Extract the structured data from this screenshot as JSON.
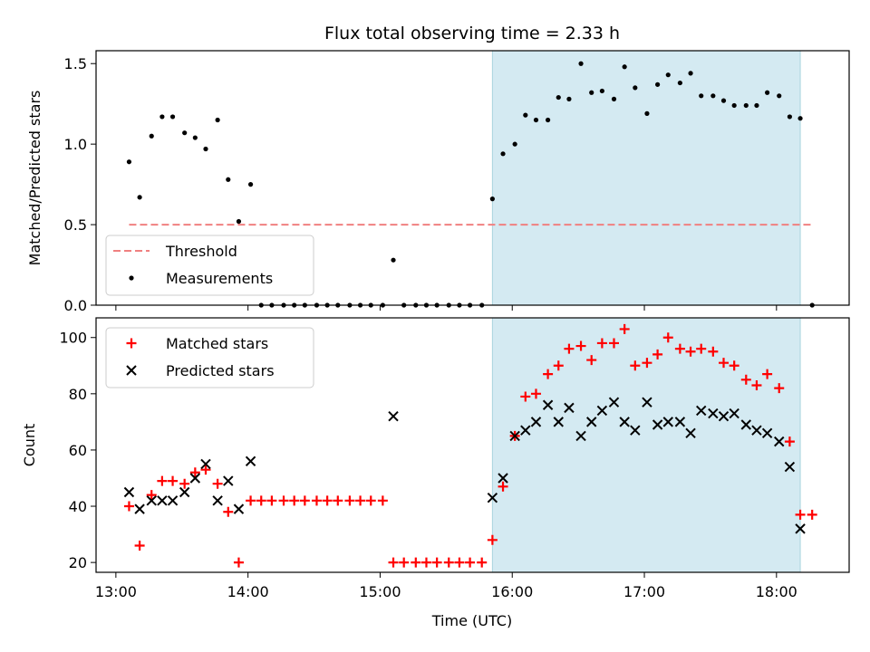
{
  "chart_data": {
    "title": "Flux total observing time = 2.33 h",
    "xlabel": "Time (UTC)",
    "xticks": [
      {
        "value": 13.0,
        "label": "13:00"
      },
      {
        "value": 14.0,
        "label": "14:00"
      },
      {
        "value": 15.0,
        "label": "15:00"
      },
      {
        "value": 16.0,
        "label": "16:00"
      },
      {
        "value": 17.0,
        "label": "17:00"
      },
      {
        "value": 18.0,
        "label": "18:00"
      }
    ],
    "xlim": [
      12.85,
      18.55
    ],
    "shaded_region": {
      "x0": 15.85,
      "x1": 18.18,
      "color": "#d4eaf2"
    },
    "colors": {
      "threshold": "#f08080",
      "measurements": "#000000",
      "matched": "#ff0000",
      "predicted": "#000000"
    },
    "panels": [
      {
        "type": "scatter",
        "ylabel": "Matched/Predicted stars",
        "ylim": [
          0,
          1.58
        ],
        "yticks": [
          {
            "value": 0.0,
            "label": "0.0"
          },
          {
            "value": 0.5,
            "label": "0.5"
          },
          {
            "value": 1.0,
            "label": "1.0"
          },
          {
            "value": 1.5,
            "label": "1.5"
          }
        ],
        "threshold": {
          "name": "Threshold",
          "value": 0.5,
          "x_range": [
            13.1,
            18.27
          ]
        },
        "legend": {
          "position": "lower-left",
          "entries": [
            "Threshold",
            "Measurements"
          ]
        },
        "series": [
          {
            "name": "Measurements",
            "marker": "dot",
            "x": [
              13.1,
              13.18,
              13.27,
              13.35,
              13.43,
              13.52,
              13.6,
              13.68,
              13.77,
              13.85,
              13.93,
              14.02,
              14.1,
              14.18,
              14.27,
              14.35,
              14.43,
              14.52,
              14.6,
              14.68,
              14.77,
              14.85,
              14.93,
              15.02,
              15.1,
              15.18,
              15.27,
              15.35,
              15.43,
              15.52,
              15.6,
              15.68,
              15.77,
              15.85,
              15.93,
              16.02,
              16.1,
              16.18,
              16.27,
              16.35,
              16.43,
              16.52,
              16.6,
              16.68,
              16.77,
              16.85,
              16.93,
              17.02,
              17.1,
              17.18,
              17.27,
              17.35,
              17.43,
              17.52,
              17.6,
              17.68,
              17.77,
              17.85,
              17.93,
              18.02,
              18.1,
              18.18,
              18.27
            ],
            "y": [
              0.89,
              0.67,
              1.05,
              1.17,
              1.17,
              1.07,
              1.04,
              0.97,
              1.15,
              0.78,
              0.52,
              0.75,
              0.0,
              0.0,
              0.0,
              0.0,
              0.0,
              0.0,
              0.0,
              0.0,
              0.0,
              0.0,
              0.0,
              0.0,
              0.28,
              0.0,
              0.0,
              0.0,
              0.0,
              0.0,
              0.0,
              0.0,
              0.0,
              0.66,
              0.94,
              1.0,
              1.18,
              1.15,
              1.15,
              1.29,
              1.28,
              1.5,
              1.32,
              1.33,
              1.28,
              1.48,
              1.35,
              1.19,
              1.37,
              1.43,
              1.38,
              1.44,
              1.3,
              1.3,
              1.27,
              1.24,
              1.24,
              1.24,
              1.32,
              1.3,
              1.17,
              1.16,
              0.0
            ]
          }
        ]
      },
      {
        "type": "scatter",
        "ylabel": "Count",
        "ylim": [
          16.5,
          107
        ],
        "yticks": [
          {
            "value": 20,
            "label": "20"
          },
          {
            "value": 40,
            "label": "40"
          },
          {
            "value": 60,
            "label": "60"
          },
          {
            "value": 80,
            "label": "80"
          },
          {
            "value": 100,
            "label": "100"
          }
        ],
        "legend": {
          "position": "upper-left",
          "entries": [
            "Matched stars",
            "Predicted stars"
          ]
        },
        "series": [
          {
            "name": "Matched stars",
            "marker": "plus",
            "x": [
              13.1,
              13.18,
              13.27,
              13.35,
              13.43,
              13.52,
              13.6,
              13.68,
              13.77,
              13.85,
              13.93,
              14.02,
              14.1,
              14.18,
              14.27,
              14.35,
              14.43,
              14.52,
              14.6,
              14.68,
              14.77,
              14.85,
              14.93,
              15.02,
              15.1,
              15.18,
              15.27,
              15.35,
              15.43,
              15.52,
              15.6,
              15.68,
              15.77,
              15.85,
              15.93,
              16.02,
              16.1,
              16.18,
              16.27,
              16.35,
              16.43,
              16.52,
              16.6,
              16.68,
              16.77,
              16.85,
              16.93,
              17.02,
              17.1,
              17.18,
              17.27,
              17.35,
              17.43,
              17.52,
              17.6,
              17.68,
              17.77,
              17.85,
              17.93,
              18.02,
              18.1,
              18.18,
              18.27
            ],
            "y": [
              40,
              26,
              44,
              49,
              49,
              48,
              52,
              53,
              48,
              38,
              20,
              42,
              42,
              42,
              42,
              42,
              42,
              42,
              42,
              42,
              42,
              42,
              42,
              42,
              20,
              20,
              20,
              20,
              20,
              20,
              20,
              20,
              20,
              28,
              47,
              65,
              79,
              80,
              87,
              90,
              96,
              97,
              92,
              98,
              98,
              103,
              90,
              91,
              94,
              100,
              96,
              95,
              96,
              95,
              91,
              90,
              85,
              83,
              87,
              82,
              63,
              37,
              37
            ]
          },
          {
            "name": "Predicted stars",
            "marker": "x",
            "x": [
              13.1,
              13.18,
              13.27,
              13.35,
              13.43,
              13.52,
              13.6,
              13.68,
              13.77,
              13.85,
              13.93,
              14.02,
              15.1,
              15.85,
              15.93,
              16.02,
              16.1,
              16.18,
              16.27,
              16.35,
              16.43,
              16.52,
              16.6,
              16.68,
              16.77,
              16.85,
              16.93,
              17.02,
              17.1,
              17.18,
              17.27,
              17.35,
              17.43,
              17.52,
              17.6,
              17.68,
              17.77,
              17.85,
              17.93,
              18.02,
              18.1,
              18.18
            ],
            "y": [
              45,
              39,
              42,
              42,
              42,
              45,
              50,
              55,
              42,
              49,
              39,
              56,
              72,
              43,
              50,
              65,
              67,
              70,
              76,
              70,
              75,
              65,
              70,
              74,
              77,
              70,
              67,
              77,
              69,
              70,
              70,
              66,
              74,
              73,
              72,
              73,
              69,
              67,
              66,
              63,
              54,
              32
            ]
          }
        ]
      }
    ]
  }
}
